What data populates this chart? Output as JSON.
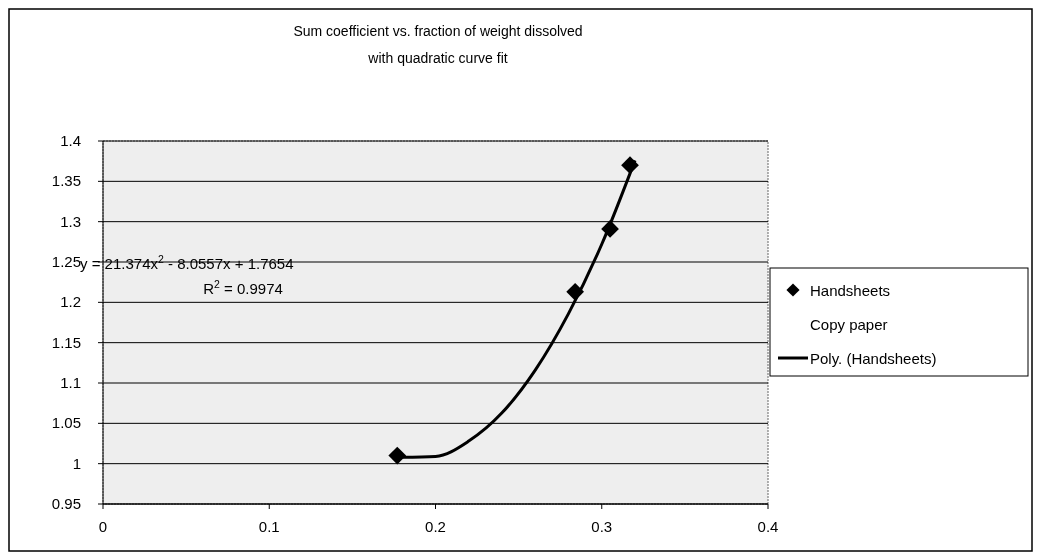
{
  "chart_data": {
    "type": "scatter",
    "title": "Sum coefficient vs. fraction of weight dissolved",
    "subtitle": "with quadratic curve fit",
    "xlim": [
      0,
      0.4
    ],
    "xticks": [
      0,
      0.1,
      0.2,
      0.3,
      0.4
    ],
    "ylim": [
      0.95,
      1.4
    ],
    "yticks": [
      0.95,
      1,
      1.05,
      1.1,
      1.15,
      1.2,
      1.25,
      1.3,
      1.35,
      1.4
    ],
    "grid": "y",
    "legend": "right",
    "series": [
      {
        "name": "Handsheets",
        "color": "#000000",
        "marker": "diamond",
        "x": [
          0.177,
          0.284,
          0.305,
          0.317
        ],
        "values": [
          1.01,
          1.213,
          1.291,
          1.37
        ]
      },
      {
        "name": "Copy paper",
        "marker": "none"
      },
      {
        "name": "Poly. (Handsheets)",
        "type": "line",
        "color": "#000000",
        "line_style": "solid",
        "x": [
          0.18,
          0.2,
          0.22,
          0.24,
          0.26,
          0.28,
          0.3,
          0.32
        ],
        "values": [
          1.008,
          1.009,
          1.028,
          1.063,
          1.116,
          1.186,
          1.272,
          1.376
        ]
      }
    ],
    "annotations": [
      "y = 21.374x$^{2}$ - 8.0557x + 1.7654",
      "R$^{2}$ = 0.9974"
    ]
  }
}
